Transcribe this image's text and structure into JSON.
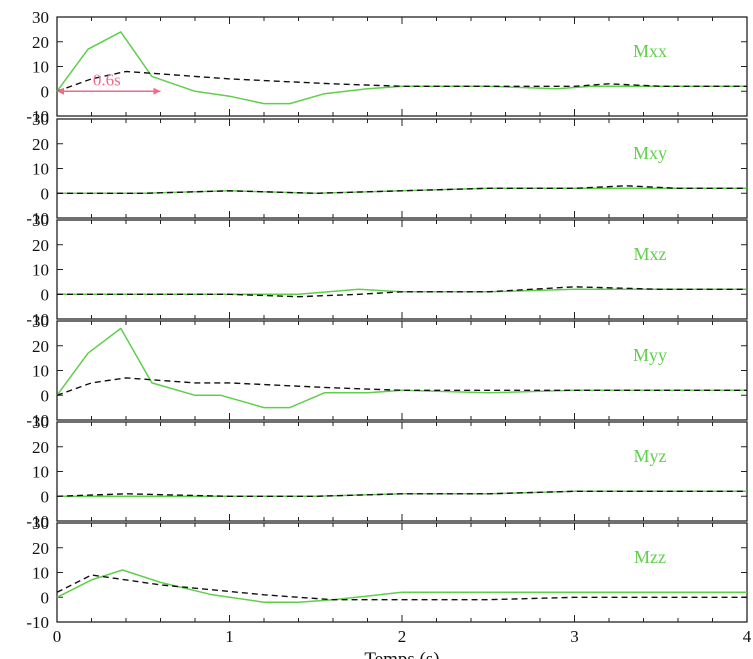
{
  "chart_data": {
    "type": "line",
    "xlabel": "Temps (s)",
    "xlim": [
      0,
      4
    ],
    "xticks": [
      "0",
      "1",
      "2",
      "3",
      "4"
    ],
    "ylim": [
      -10,
      30
    ],
    "yticks": [
      "30",
      "20",
      "10",
      "0",
      "-10"
    ],
    "grid": false,
    "colors": {
      "solid": "#5fcf4a",
      "dashed": "#111111",
      "annotation": "#f06a8a"
    },
    "annotation": {
      "text": "0.6s",
      "panel": 0,
      "x_from": 0,
      "x_to": 0.6,
      "y": 0
    },
    "panels": [
      {
        "label": "Mxx",
        "series": [
          {
            "style": "solid",
            "x": [
              0,
              0.18,
              0.37,
              0.55,
              0.8,
              1.0,
              1.2,
              1.35,
              1.55,
              1.8,
              2.0,
              2.5,
              2.9,
              3.1,
              3.5,
              4.0
            ],
            "y": [
              0,
              17,
              24,
              6,
              0,
              -2,
              -5,
              -5,
              -1,
              1,
              2,
              2,
              1,
              2,
              2,
              2
            ]
          },
          {
            "style": "dashed",
            "x": [
              0,
              0.2,
              0.4,
              0.6,
              0.8,
              1.0,
              1.3,
              1.6,
              2.0,
              2.5,
              3.0,
              3.2,
              3.5,
              4.0
            ],
            "y": [
              0,
              5,
              8,
              7,
              6,
              5,
              4,
              3,
              2,
              2,
              2,
              3,
              2,
              2
            ]
          }
        ]
      },
      {
        "label": "Mxy",
        "series": [
          {
            "style": "solid",
            "x": [
              0,
              0.5,
              1.0,
              1.5,
              2.0,
              2.5,
              3.0,
              3.5,
              4.0
            ],
            "y": [
              0,
              0,
              1,
              0,
              1,
              2,
              2,
              2,
              2
            ]
          },
          {
            "style": "dashed",
            "x": [
              0,
              0.5,
              1.0,
              1.5,
              2.0,
              2.5,
              3.0,
              3.3,
              3.6,
              4.0
            ],
            "y": [
              0,
              0,
              1,
              0,
              1,
              2,
              2,
              3,
              2,
              2
            ]
          }
        ]
      },
      {
        "label": "Mxz",
        "series": [
          {
            "style": "solid",
            "x": [
              0,
              0.5,
              1.0,
              1.4,
              1.75,
              2.0,
              2.5,
              3.0,
              3.5,
              4.0
            ],
            "y": [
              0,
              0,
              0,
              0,
              2,
              1,
              1,
              2,
              2,
              2
            ]
          },
          {
            "style": "dashed",
            "x": [
              0,
              0.5,
              1.0,
              1.4,
              1.75,
              2.0,
              2.5,
              3.0,
              3.5,
              4.0
            ],
            "y": [
              0,
              0,
              0,
              -1,
              0,
              1,
              1,
              3,
              2,
              2
            ]
          }
        ]
      },
      {
        "label": "Myy",
        "series": [
          {
            "style": "solid",
            "x": [
              0,
              0.18,
              0.37,
              0.55,
              0.8,
              0.95,
              1.2,
              1.35,
              1.55,
              1.8,
              2.0,
              2.5,
              3.0,
              3.5,
              4.0
            ],
            "y": [
              0,
              17,
              27,
              5,
              0,
              0,
              -5,
              -5,
              1,
              1,
              2,
              1,
              2,
              2,
              2
            ]
          },
          {
            "style": "dashed",
            "x": [
              0,
              0.2,
              0.4,
              0.6,
              0.8,
              1.0,
              1.3,
              1.6,
              2.0,
              2.5,
              3.0,
              3.5,
              4.0
            ],
            "y": [
              0,
              5,
              7,
              6,
              5,
              5,
              4,
              3,
              2,
              2,
              2,
              2,
              2
            ]
          }
        ]
      },
      {
        "label": "Myz",
        "series": [
          {
            "style": "solid",
            "x": [
              0,
              0.5,
              1.0,
              1.5,
              2.0,
              2.5,
              3.0,
              3.5,
              4.0
            ],
            "y": [
              0,
              0,
              0,
              0,
              1,
              1,
              2,
              2,
              2
            ]
          },
          {
            "style": "dashed",
            "x": [
              0,
              0.4,
              1.0,
              1.5,
              2.0,
              2.5,
              3.0,
              3.5,
              4.0
            ],
            "y": [
              0,
              1,
              0,
              0,
              1,
              1,
              2,
              2,
              2
            ]
          }
        ]
      },
      {
        "label": "Mzz",
        "series": [
          {
            "style": "solid",
            "x": [
              0,
              0.2,
              0.38,
              0.6,
              0.9,
              1.2,
              1.4,
              1.6,
              2.0,
              2.5,
              3.0,
              3.5,
              4.0
            ],
            "y": [
              0,
              7,
              11,
              6,
              1,
              -2,
              -2,
              -1,
              2,
              2,
              2,
              2,
              2
            ]
          },
          {
            "style": "dashed",
            "x": [
              0,
              0.2,
              0.4,
              0.6,
              0.9,
              1.2,
              1.4,
              1.6,
              2.0,
              2.5,
              3.0,
              3.5,
              4.0
            ],
            "y": [
              2,
              9,
              7,
              5,
              3,
              1,
              0,
              -1,
              -1,
              -1,
              0,
              0,
              0
            ]
          }
        ]
      }
    ]
  }
}
